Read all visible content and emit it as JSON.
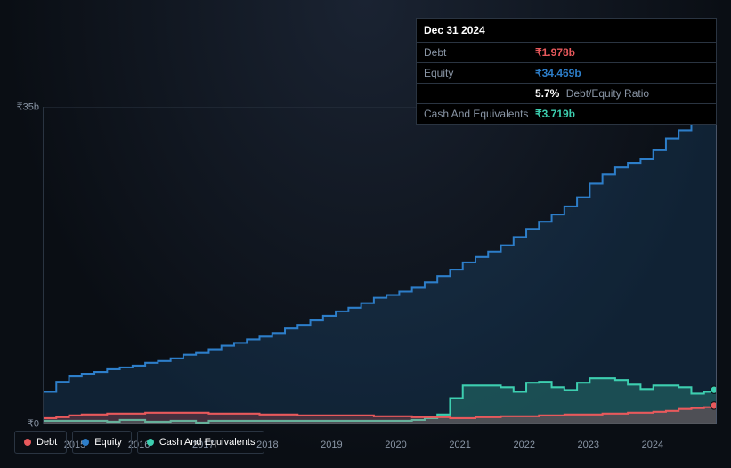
{
  "tooltip": {
    "date": "Dec 31 2024",
    "rows": [
      {
        "label": "Debt",
        "value": "₹1.978b",
        "color": "#e8595c"
      },
      {
        "label": "Equity",
        "value": "₹34.469b",
        "color": "#2d7ec9"
      },
      {
        "label": "",
        "value": "5.7%",
        "suffix": "Debt/Equity Ratio",
        "color": "#ffffff"
      },
      {
        "label": "Cash And Equivalents",
        "value": "₹3.719b",
        "color": "#3dcfb0"
      }
    ]
  },
  "chart": {
    "type": "area",
    "ylim": [
      0,
      35
    ],
    "ylabels": [
      {
        "v": 35,
        "text": "₹35b"
      },
      {
        "v": 0,
        "text": "₹0"
      }
    ],
    "xlim": [
      2014.5,
      2025
    ],
    "xlabels": [
      2015,
      2016,
      2017,
      2018,
      2019,
      2020,
      2021,
      2022,
      2023,
      2024
    ],
    "grid_color": "#2a3441",
    "background_color": "transparent",
    "hover_x": 2025,
    "series": [
      {
        "name": "Equity",
        "color_line": "#2d7ec9",
        "color_fill": "rgba(45,126,201,0.18)",
        "line_width": 2,
        "points_y": [
          3.5,
          4.6,
          5.2,
          5.5,
          5.7,
          6.0,
          6.2,
          6.4,
          6.7,
          6.9,
          7.2,
          7.6,
          7.8,
          8.2,
          8.6,
          8.9,
          9.3,
          9.6,
          10.0,
          10.5,
          10.9,
          11.4,
          11.9,
          12.4,
          12.8,
          13.3,
          13.9,
          14.2,
          14.6,
          15.0,
          15.6,
          16.3,
          17.0,
          17.8,
          18.4,
          19.0,
          19.7,
          20.6,
          21.5,
          22.3,
          23.1,
          24.0,
          25.0,
          26.5,
          27.5,
          28.3,
          28.8,
          29.2,
          30.2,
          31.5,
          32.4,
          33.2,
          33.8,
          34.469
        ]
      },
      {
        "name": "Cash And Equivalents",
        "color_line": "#3dcfb0",
        "color_fill": "rgba(61,207,176,0.25)",
        "line_width": 2,
        "points_y": [
          0.3,
          0.3,
          0.3,
          0.3,
          0.3,
          0.2,
          0.4,
          0.4,
          0.2,
          0.2,
          0.3,
          0.3,
          0.1,
          0.3,
          0.3,
          0.3,
          0.3,
          0.3,
          0.3,
          0.3,
          0.3,
          0.3,
          0.3,
          0.3,
          0.3,
          0.3,
          0.3,
          0.3,
          0.3,
          0.4,
          0.6,
          1.0,
          2.8,
          4.2,
          4.2,
          4.2,
          4.0,
          3.5,
          4.5,
          4.6,
          4.0,
          3.7,
          4.5,
          5.0,
          5.0,
          4.8,
          4.3,
          3.8,
          4.2,
          4.2,
          4.0,
          3.3,
          3.5,
          3.719
        ]
      },
      {
        "name": "Debt",
        "color_line": "#e8595c",
        "color_fill": "rgba(232,89,92,0.25)",
        "line_width": 2,
        "points_y": [
          0.6,
          0.7,
          0.9,
          1.0,
          1.0,
          1.1,
          1.1,
          1.1,
          1.2,
          1.2,
          1.2,
          1.2,
          1.2,
          1.1,
          1.1,
          1.1,
          1.1,
          1.0,
          1.0,
          1.0,
          0.9,
          0.9,
          0.9,
          0.9,
          0.9,
          0.9,
          0.8,
          0.8,
          0.8,
          0.7,
          0.7,
          0.7,
          0.6,
          0.6,
          0.7,
          0.7,
          0.8,
          0.8,
          0.8,
          0.9,
          0.9,
          1.0,
          1.0,
          1.0,
          1.1,
          1.1,
          1.2,
          1.2,
          1.3,
          1.4,
          1.6,
          1.7,
          1.8,
          1.978
        ]
      }
    ]
  },
  "legend": [
    {
      "label": "Debt",
      "color": "#e8595c"
    },
    {
      "label": "Equity",
      "color": "#2d7ec9"
    },
    {
      "label": "Cash And Equivalents",
      "color": "#3dcfb0"
    }
  ]
}
